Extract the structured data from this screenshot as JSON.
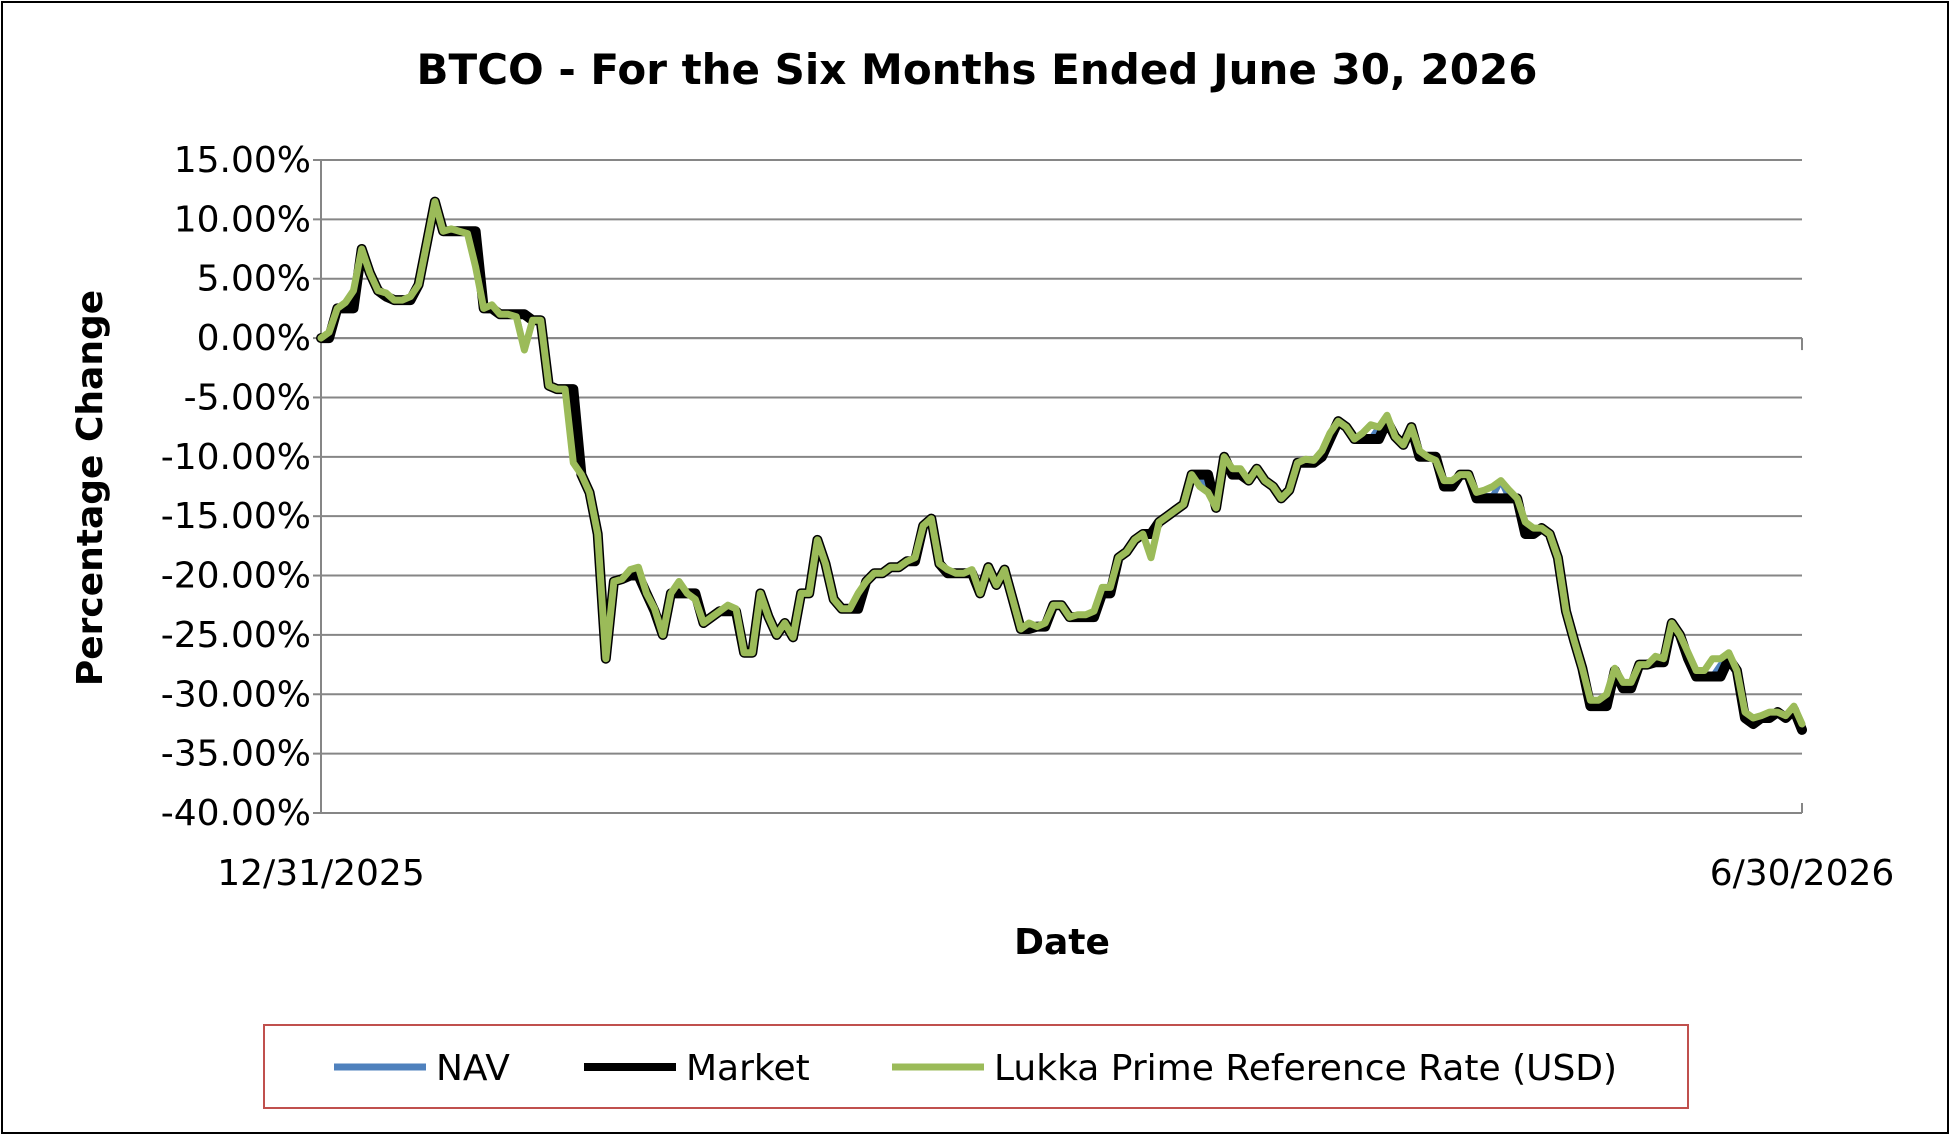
{
  "chart_data": {
    "type": "line",
    "title": "BTCO - For the Six Months Ended June 30, 2026",
    "xlabel": "Date",
    "ylabel": "Percentage Change",
    "x_tick_labels": [
      "12/31/2025",
      "6/30/2026"
    ],
    "x_range": [
      "12/31/2025",
      "6/30/2026"
    ],
    "ylim": [
      -40,
      15
    ],
    "y_ticks": [
      15,
      10,
      5,
      0,
      -5,
      -10,
      -15,
      -20,
      -25,
      -30,
      -35,
      -40
    ],
    "y_tick_labels": [
      "15.00%",
      "10.00%",
      "5.00%",
      "0.00%",
      "-5.00%",
      "-10.00%",
      "-15.00%",
      "-20.00%",
      "-25.00%",
      "-30.00%",
      "-35.00%",
      "-40.00%"
    ],
    "grid": true,
    "legend_position": "bottom",
    "series": [
      {
        "name": "NAV",
        "color": "#4F81BD",
        "values": [
          0.0,
          0.5,
          2.5,
          3.0,
          4.0,
          7.5,
          5.5,
          4.0,
          3.8,
          3.2,
          3.2,
          3.5,
          4.5,
          8.0,
          11.5,
          9.0,
          9.0,
          9.0,
          9.0,
          6.0,
          2.5,
          2.8,
          2.0,
          2.0,
          2.0,
          -1.0,
          1.5,
          1.5,
          -4.0,
          -4.3,
          -4.3,
          -10.5,
          -11.5,
          -13.0,
          -16.5,
          -27.0,
          -20.5,
          -20.3,
          -19.5,
          -19.3,
          -21.5,
          -22.8,
          -25.0,
          -21.5,
          -21.5,
          -21.5,
          -22.0,
          -24.0,
          -23.5,
          -23.0,
          -22.8,
          -22.8,
          -26.5,
          -26.5,
          -21.5,
          -23.5,
          -25.0,
          -24.0,
          -25.2,
          -21.5,
          -21.5,
          -17.0,
          -19.0,
          -22.0,
          -22.8,
          -22.8,
          -21.5,
          -20.5,
          -19.8,
          -19.8,
          -19.3,
          -19.3,
          -18.8,
          -18.8,
          -15.8,
          -15.2,
          -19.0,
          -19.8,
          -19.8,
          -19.8,
          -19.8,
          -21.5,
          -19.3,
          -20.8,
          -19.5,
          -22.0,
          -24.5,
          -24.5,
          -24.3,
          -24.0,
          -22.5,
          -22.5,
          -23.5,
          -23.5,
          -23.3,
          -23.3,
          -21.5,
          -21.5,
          -18.5,
          -18.0,
          -17.0,
          -16.5,
          -18.5,
          -15.5,
          -15.0,
          -14.5,
          -14.0,
          -11.5,
          -11.5,
          -13.0,
          -14.3,
          -10.0,
          -11.5,
          -11.5,
          -12.0,
          -11.0,
          -12.0,
          -12.5,
          -13.5,
          -12.8,
          -10.5,
          -10.5,
          -10.3,
          -10.0,
          -8.5,
          -7.0,
          -7.5,
          -8.5,
          -8.5,
          -8.5,
          -7.5,
          -7.0,
          -8.3,
          -9.0,
          -7.5,
          -10.0,
          -10.0,
          -10.3,
          -12.5,
          -12.5,
          -11.5,
          -11.5,
          -13.3,
          -13.3,
          -13.3,
          -12.0,
          -13.5,
          -13.5,
          -16.5,
          -16.5,
          -16.0,
          -16.5,
          -18.5,
          -23.0,
          -25.5,
          -27.8,
          -31.0,
          -31.0,
          -30.5,
          -28.0,
          -29.5,
          -29.5,
          -27.5,
          -27.5,
          -27.3,
          -27.3,
          -24.0,
          -25.0,
          -27.0,
          -28.5,
          -28.5,
          -28.5,
          -27.5,
          -27.0,
          -28.0,
          -32.0,
          -32.5,
          -32.0,
          -32.0,
          -31.5,
          -32.0,
          -31.3,
          -33.0
        ]
      },
      {
        "name": "Market",
        "color": "#000000",
        "values": [
          0.0,
          0.0,
          2.5,
          2.5,
          2.5,
          7.5,
          5.5,
          4.0,
          3.5,
          3.2,
          3.2,
          3.2,
          4.5,
          8.0,
          11.5,
          9.0,
          9.0,
          9.0,
          9.0,
          9.0,
          2.5,
          2.5,
          2.0,
          2.0,
          2.0,
          2.0,
          1.5,
          1.5,
          -4.0,
          -4.3,
          -4.3,
          -4.3,
          -11.5,
          -13.0,
          -16.5,
          -27.0,
          -20.5,
          -20.3,
          -20.0,
          -20.0,
          -21.5,
          -23.0,
          -25.0,
          -21.5,
          -21.5,
          -21.5,
          -21.5,
          -24.0,
          -23.5,
          -23.0,
          -23.0,
          -23.0,
          -26.5,
          -26.5,
          -21.5,
          -23.5,
          -25.0,
          -24.0,
          -25.2,
          -21.5,
          -21.5,
          -17.0,
          -19.0,
          -22.0,
          -22.8,
          -22.8,
          -22.8,
          -20.5,
          -19.8,
          -19.8,
          -19.3,
          -19.3,
          -18.8,
          -18.8,
          -15.8,
          -15.2,
          -19.0,
          -19.8,
          -19.8,
          -19.8,
          -19.8,
          -21.5,
          -19.3,
          -20.8,
          -19.5,
          -22.0,
          -24.5,
          -24.5,
          -24.3,
          -24.3,
          -22.5,
          -22.5,
          -23.5,
          -23.5,
          -23.5,
          -23.5,
          -21.5,
          -21.5,
          -18.5,
          -18.0,
          -17.0,
          -16.5,
          -16.5,
          -15.5,
          -15.0,
          -14.5,
          -14.0,
          -11.5,
          -11.5,
          -11.5,
          -14.3,
          -10.0,
          -11.5,
          -11.5,
          -12.0,
          -11.0,
          -12.0,
          -12.5,
          -13.5,
          -12.8,
          -10.5,
          -10.5,
          -10.5,
          -10.0,
          -8.5,
          -7.0,
          -7.5,
          -8.5,
          -8.5,
          -8.5,
          -8.5,
          -7.0,
          -8.3,
          -9.0,
          -7.5,
          -10.0,
          -10.0,
          -10.0,
          -12.5,
          -12.5,
          -11.5,
          -11.5,
          -13.5,
          -13.5,
          -13.5,
          -13.5,
          -13.5,
          -13.5,
          -16.5,
          -16.5,
          -16.0,
          -16.5,
          -18.5,
          -23.0,
          -25.5,
          -27.8,
          -31.0,
          -31.0,
          -31.0,
          -28.0,
          -29.5,
          -29.5,
          -27.5,
          -27.5,
          -27.3,
          -27.3,
          -24.0,
          -25.0,
          -27.0,
          -28.5,
          -28.5,
          -28.5,
          -28.5,
          -27.0,
          -28.0,
          -32.0,
          -32.5,
          -32.0,
          -32.0,
          -31.5,
          -32.0,
          -31.3,
          -33.0
        ]
      },
      {
        "name": "Lukka Prime Reference Rate (USD)",
        "color": "#9BBB59",
        "values": [
          0.0,
          0.5,
          2.5,
          3.0,
          4.0,
          7.5,
          5.5,
          4.0,
          3.8,
          3.2,
          3.2,
          3.5,
          4.5,
          8.0,
          11.5,
          9.0,
          9.2,
          9.0,
          8.8,
          6.0,
          2.5,
          2.8,
          2.0,
          2.0,
          1.8,
          -1.0,
          1.5,
          1.5,
          -4.0,
          -4.3,
          -4.3,
          -10.5,
          -11.5,
          -13.0,
          -16.5,
          -27.0,
          -20.5,
          -20.3,
          -19.5,
          -19.3,
          -21.5,
          -22.8,
          -25.0,
          -21.5,
          -20.5,
          -21.5,
          -22.0,
          -24.0,
          -23.5,
          -23.0,
          -22.5,
          -22.8,
          -26.5,
          -26.5,
          -21.5,
          -23.5,
          -25.0,
          -24.0,
          -25.2,
          -21.5,
          -21.5,
          -17.0,
          -19.0,
          -22.0,
          -22.8,
          -22.8,
          -21.5,
          -20.5,
          -19.8,
          -19.8,
          -19.3,
          -19.3,
          -18.8,
          -18.5,
          -15.8,
          -15.2,
          -19.0,
          -19.5,
          -19.8,
          -19.8,
          -19.5,
          -21.5,
          -19.3,
          -20.8,
          -19.5,
          -22.0,
          -24.5,
          -24.0,
          -24.3,
          -24.0,
          -22.5,
          -22.5,
          -23.5,
          -23.3,
          -23.3,
          -23.0,
          -21.0,
          -21.0,
          -18.5,
          -18.0,
          -17.0,
          -16.5,
          -18.5,
          -15.5,
          -15.0,
          -14.5,
          -14.0,
          -11.5,
          -12.5,
          -13.0,
          -14.3,
          -10.0,
          -11.0,
          -11.0,
          -12.0,
          -11.0,
          -12.0,
          -12.5,
          -13.5,
          -12.8,
          -10.5,
          -10.2,
          -10.3,
          -9.5,
          -8.0,
          -7.0,
          -7.5,
          -8.5,
          -8.0,
          -7.3,
          -7.5,
          -6.5,
          -8.3,
          -9.0,
          -7.5,
          -9.5,
          -10.0,
          -10.3,
          -12.0,
          -12.0,
          -11.5,
          -11.5,
          -13.0,
          -12.8,
          -12.5,
          -12.0,
          -12.8,
          -13.5,
          -15.5,
          -16.0,
          -16.0,
          -16.5,
          -18.5,
          -23.0,
          -25.5,
          -27.8,
          -30.5,
          -30.5,
          -30.0,
          -27.8,
          -29.0,
          -29.0,
          -27.5,
          -27.5,
          -26.8,
          -27.0,
          -24.0,
          -25.0,
          -26.5,
          -28.0,
          -28.0,
          -27.0,
          -27.0,
          -26.5,
          -28.0,
          -31.5,
          -32.0,
          -31.8,
          -31.5,
          -31.5,
          -31.8,
          -31.0,
          -32.5
        ]
      }
    ]
  }
}
